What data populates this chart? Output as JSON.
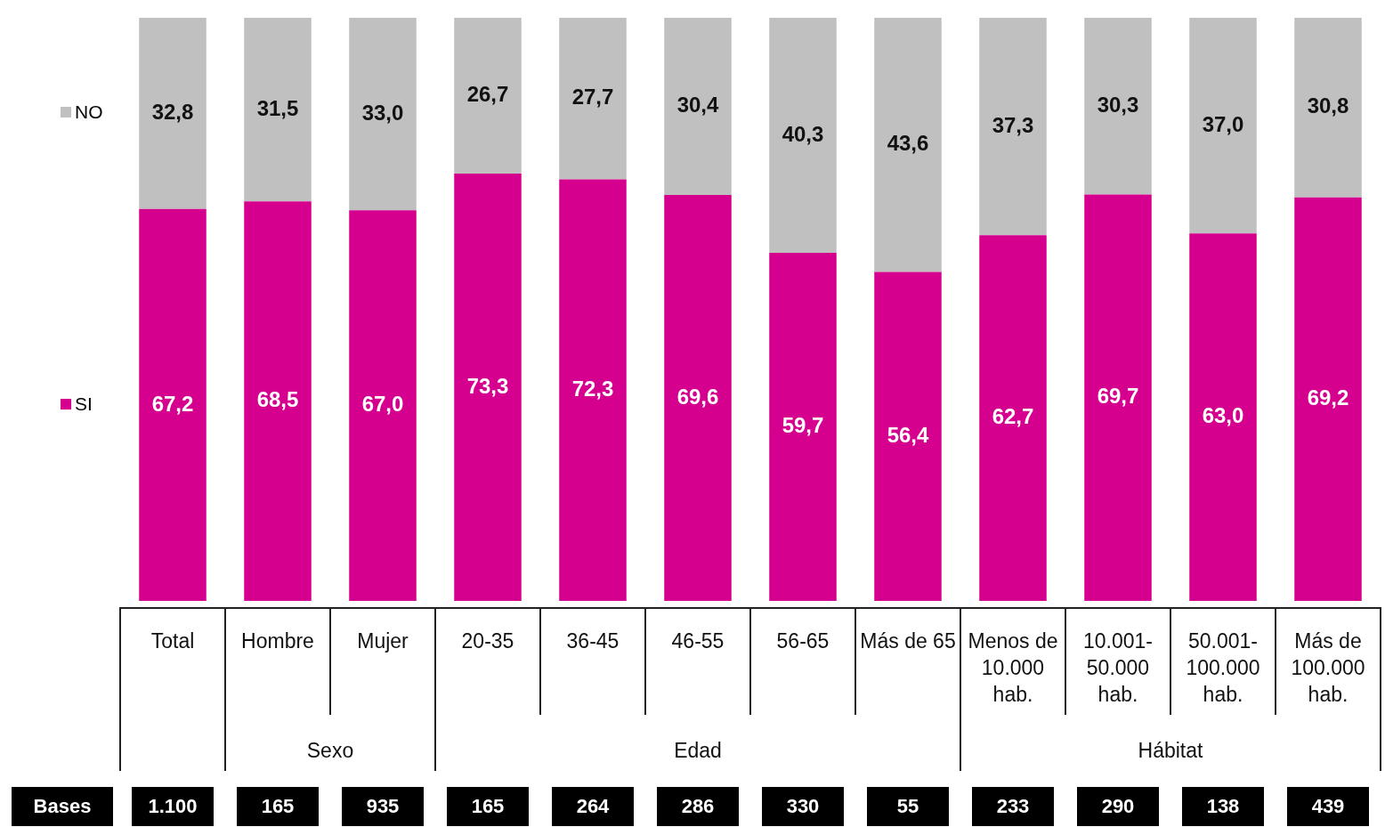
{
  "chart_data": {
    "type": "bar",
    "stacked": true,
    "legend": "left",
    "categories": [
      "Total",
      "Hombre",
      "Mujer",
      "20-35",
      "36-45",
      "46-55",
      "56-65",
      "Más de 65",
      "Menos de 10.000 hab.",
      "10.001-50.000 hab.",
      "50.001-100.000 hab.",
      "Más de 100.000 hab."
    ],
    "series": [
      {
        "name": "SI",
        "color": "#d6008f",
        "values": [
          67.2,
          68.5,
          67.0,
          73.3,
          72.3,
          69.6,
          59.7,
          56.4,
          62.7,
          69.7,
          63.0,
          69.2
        ],
        "value_labels": [
          "67,2",
          "68,5",
          "67,0",
          "73,3",
          "72,3",
          "69,6",
          "59,7",
          "56,4",
          "62,7",
          "69,7",
          "63,0",
          "69,2"
        ]
      },
      {
        "name": "NO",
        "color": "#c0c0c0",
        "values": [
          32.8,
          31.5,
          33.0,
          26.7,
          27.7,
          30.4,
          40.3,
          43.6,
          37.3,
          30.3,
          37.0,
          30.8
        ],
        "value_labels": [
          "32,8",
          "31,5",
          "33,0",
          "26,7",
          "27,7",
          "30,4",
          "40,3",
          "43,6",
          "37,3",
          "30,3",
          "37,0",
          "30,8"
        ]
      }
    ],
    "annotations": [
      "Sexo",
      "Edad",
      "Hábitat",
      "Bases",
      "1.100",
      "165",
      "935",
      "165",
      "264",
      "286",
      "330",
      "55",
      "233",
      "290",
      "138",
      "439"
    ]
  }
}
